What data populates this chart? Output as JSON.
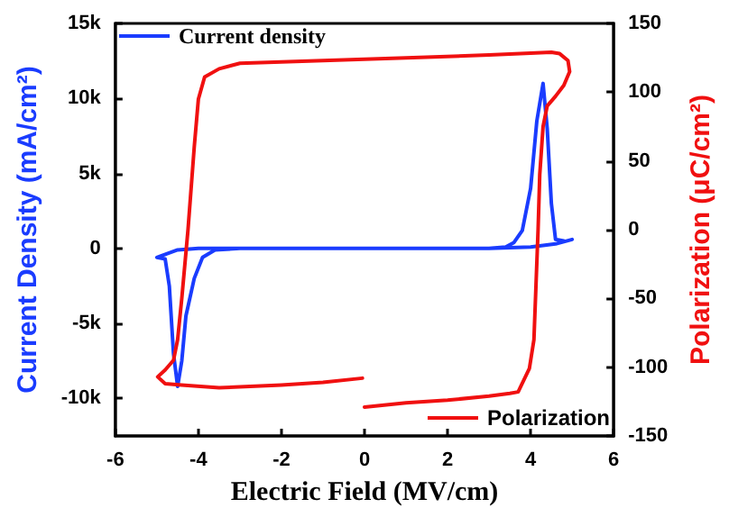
{
  "chart_data": {
    "type": "line",
    "xlabel": "Electric Field (MV/cm)",
    "ylabel": "Current Density (mA/cm²)",
    "y2label": "Polarization (μC/cm²)",
    "xlim": [
      -6,
      6
    ],
    "xticks": [
      -6,
      -4,
      -2,
      0,
      2,
      4,
      6
    ],
    "ylim": [
      -12500,
      15000
    ],
    "yticks": [
      {
        "value": -10000,
        "label": "-10k"
      },
      {
        "value": -5000,
        "label": "-5k"
      },
      0,
      {
        "value": 5000,
        "label": "5k"
      },
      {
        "value": 10000,
        "label": "10k"
      },
      {
        "value": 15000,
        "label": "15k"
      }
    ],
    "y2lim": [
      -150,
      150
    ],
    "y2ticks": [
      -150,
      -100,
      -50,
      0,
      50,
      100,
      150
    ],
    "legend": [
      "top left",
      "bottom right"
    ],
    "grid": false,
    "marker": "none",
    "line_style": "solid",
    "series": [
      {
        "name": "Current density",
        "color": "#1a3cff",
        "x": [
          5,
          4.6,
          4,
          3,
          2,
          1,
          0,
          -1,
          -2,
          -3,
          -4,
          -4.5,
          -4.9,
          -5,
          -4.8,
          -4.7,
          -4.6,
          -4.5,
          -4.4,
          -4.3,
          -4.1,
          -3.9,
          -3.6,
          -3,
          -2,
          -1,
          0,
          1,
          2,
          3,
          3.4,
          3.6,
          3.8,
          4,
          4.15,
          4.3,
          4.4,
          4.5,
          4.6,
          4.8
        ],
        "values": [
          600,
          300,
          100,
          0,
          0,
          0,
          0,
          0,
          0,
          0,
          0,
          -100,
          -500,
          -600,
          -700,
          -2500,
          -7000,
          -9200,
          -7500,
          -4500,
          -2000,
          -600,
          -100,
          0,
          0,
          0,
          0,
          0,
          0,
          0,
          100,
          400,
          1200,
          4000,
          8500,
          11000,
          8000,
          3000,
          600,
          500
        ]
      },
      {
        "name": "Polarization",
        "color": "#f01010",
        "axis": "y2",
        "x": [
          0,
          1,
          2,
          3,
          3.5,
          3.7,
          3.97,
          4.08,
          4.13,
          4.18,
          4.22,
          4.3,
          4.4,
          4.6,
          4.8,
          4.94,
          4.9,
          4.7,
          4.5,
          3,
          1,
          -1,
          -3,
          -3.5,
          -3.85,
          -4.0,
          -4.1,
          -4.25,
          -4.4,
          -4.5,
          -4.6,
          -4.8,
          -4.98,
          -4.8,
          -4.4,
          -3.5,
          -2,
          -1,
          -0.05
        ],
        "values": [
          -129,
          -126,
          -124,
          -121,
          -119,
          -118,
          -101,
          -80,
          -40,
          0,
          40,
          75,
          90,
          97,
          105,
          115,
          123,
          128,
          129,
          127,
          125,
          123,
          121,
          117,
          111,
          95,
          60,
          0,
          -50,
          -80,
          -95,
          -102,
          -107,
          -112,
          -113,
          -115,
          -113,
          -111,
          -108
        ]
      }
    ]
  }
}
